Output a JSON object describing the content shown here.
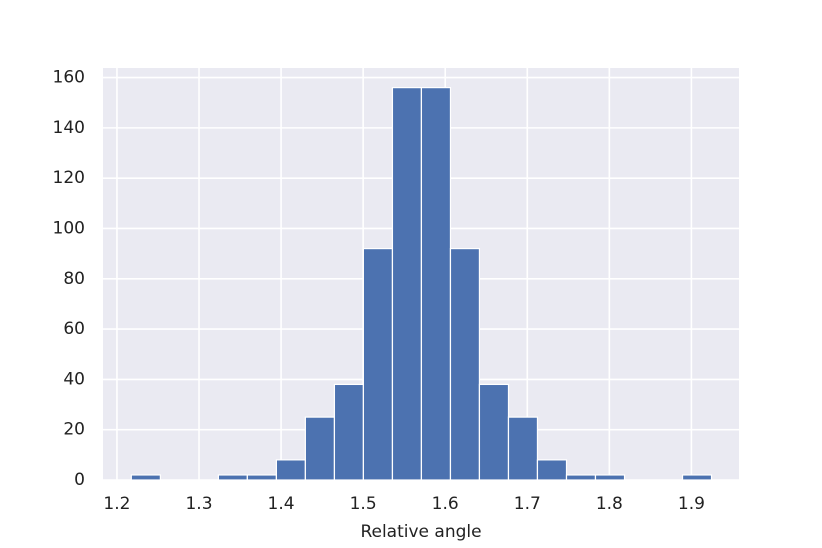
{
  "chart_data": {
    "type": "histogram",
    "x_label": "Relative angle",
    "bins": [
      1.2175,
      1.2529,
      1.2882,
      1.3236,
      1.3589,
      1.3943,
      1.4296,
      1.465,
      1.5003,
      1.5357,
      1.571,
      1.6064,
      1.6417,
      1.6771,
      1.7124,
      1.7478,
      1.7831,
      1.8185,
      1.8538,
      1.8892,
      1.9245
    ],
    "values": [
      2,
      0,
      0,
      2,
      2,
      8,
      25,
      38,
      92,
      156,
      156,
      92,
      38,
      25,
      8,
      2,
      2,
      0,
      0,
      2
    ],
    "color": "#4c72b0",
    "background": "#eaeaf2",
    "grid": true,
    "xlim": [
      1.183,
      1.958
    ],
    "xticks": [
      1.2,
      1.3,
      1.4,
      1.5,
      1.6,
      1.7,
      1.8,
      1.9
    ],
    "ylim": [
      0,
      163.8
    ],
    "yticks": [
      0,
      20,
      40,
      60,
      80,
      100,
      120,
      140,
      160
    ]
  }
}
